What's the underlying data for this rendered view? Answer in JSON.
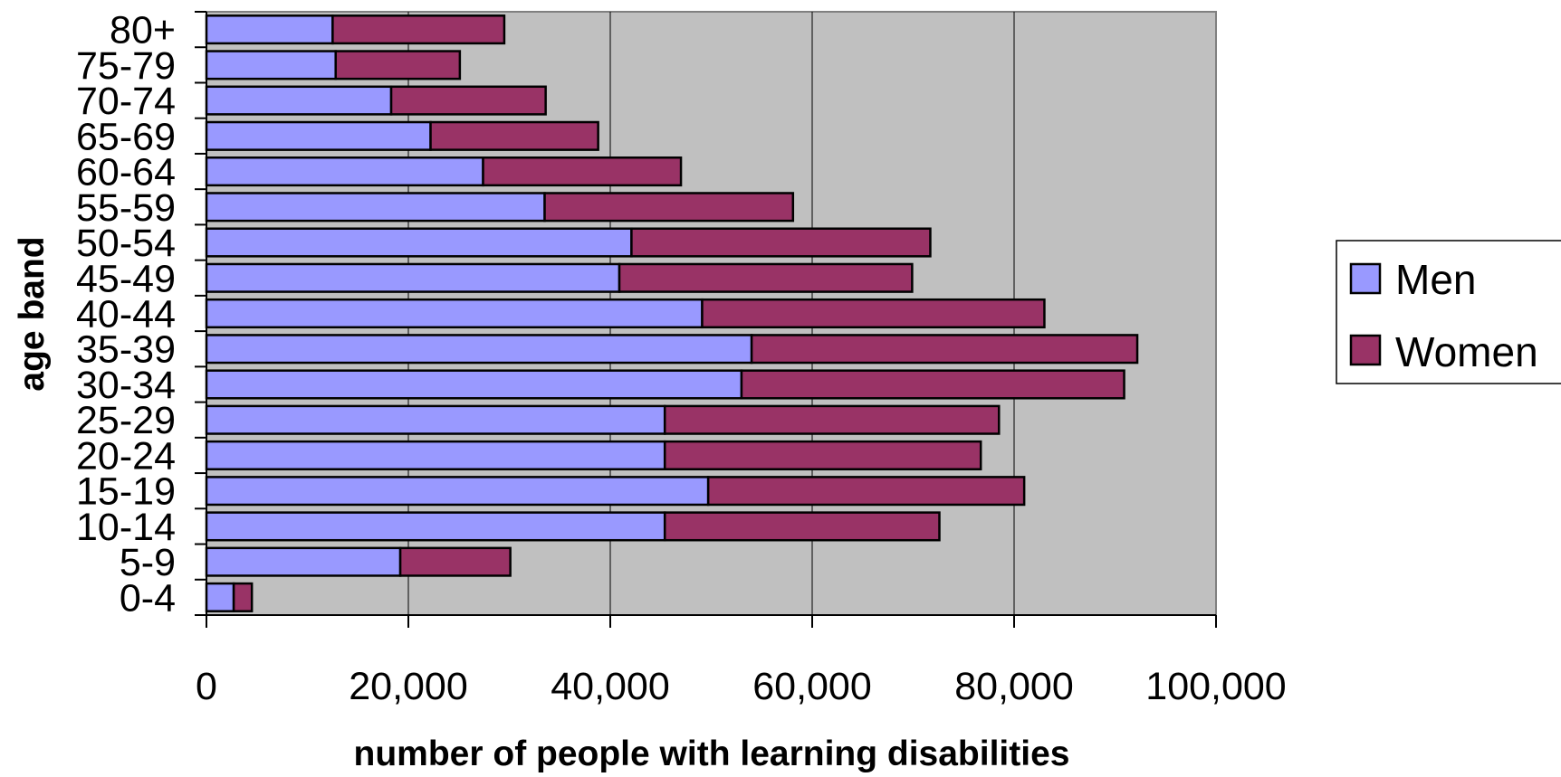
{
  "chart_data": {
    "type": "bar",
    "orientation": "horizontal",
    "stacked": true,
    "title": "",
    "xlabel": "number of people with learning disabilities",
    "ylabel": "age band",
    "xlim": [
      0,
      100000
    ],
    "xticks": [
      "0",
      "20,000",
      "40,000",
      "60,000",
      "80,000",
      "100,000"
    ],
    "grid": true,
    "legend_position": "right",
    "categories": [
      "0-4",
      "5-9",
      "10-14",
      "15-19",
      "20-24",
      "25-29",
      "30-34",
      "35-39",
      "40-44",
      "45-49",
      "50-54",
      "55-59",
      "60-64",
      "65-69",
      "70-74",
      "75-79",
      "80+"
    ],
    "series": [
      {
        "name": "Men",
        "color": "#9999ff",
        "values": [
          2700,
          19200,
          45400,
          49700,
          45400,
          45400,
          53000,
          54000,
          49100,
          40900,
          42100,
          33500,
          27400,
          22200,
          18300,
          12800,
          12500
        ]
      },
      {
        "name": "Women",
        "color": "#993366",
        "values": [
          1800,
          10900,
          27200,
          31300,
          31300,
          33100,
          37900,
          38200,
          33900,
          29000,
          29600,
          24600,
          19600,
          16600,
          15300,
          12300,
          17000
        ]
      }
    ],
    "plot_background": "#c0c0c0"
  }
}
